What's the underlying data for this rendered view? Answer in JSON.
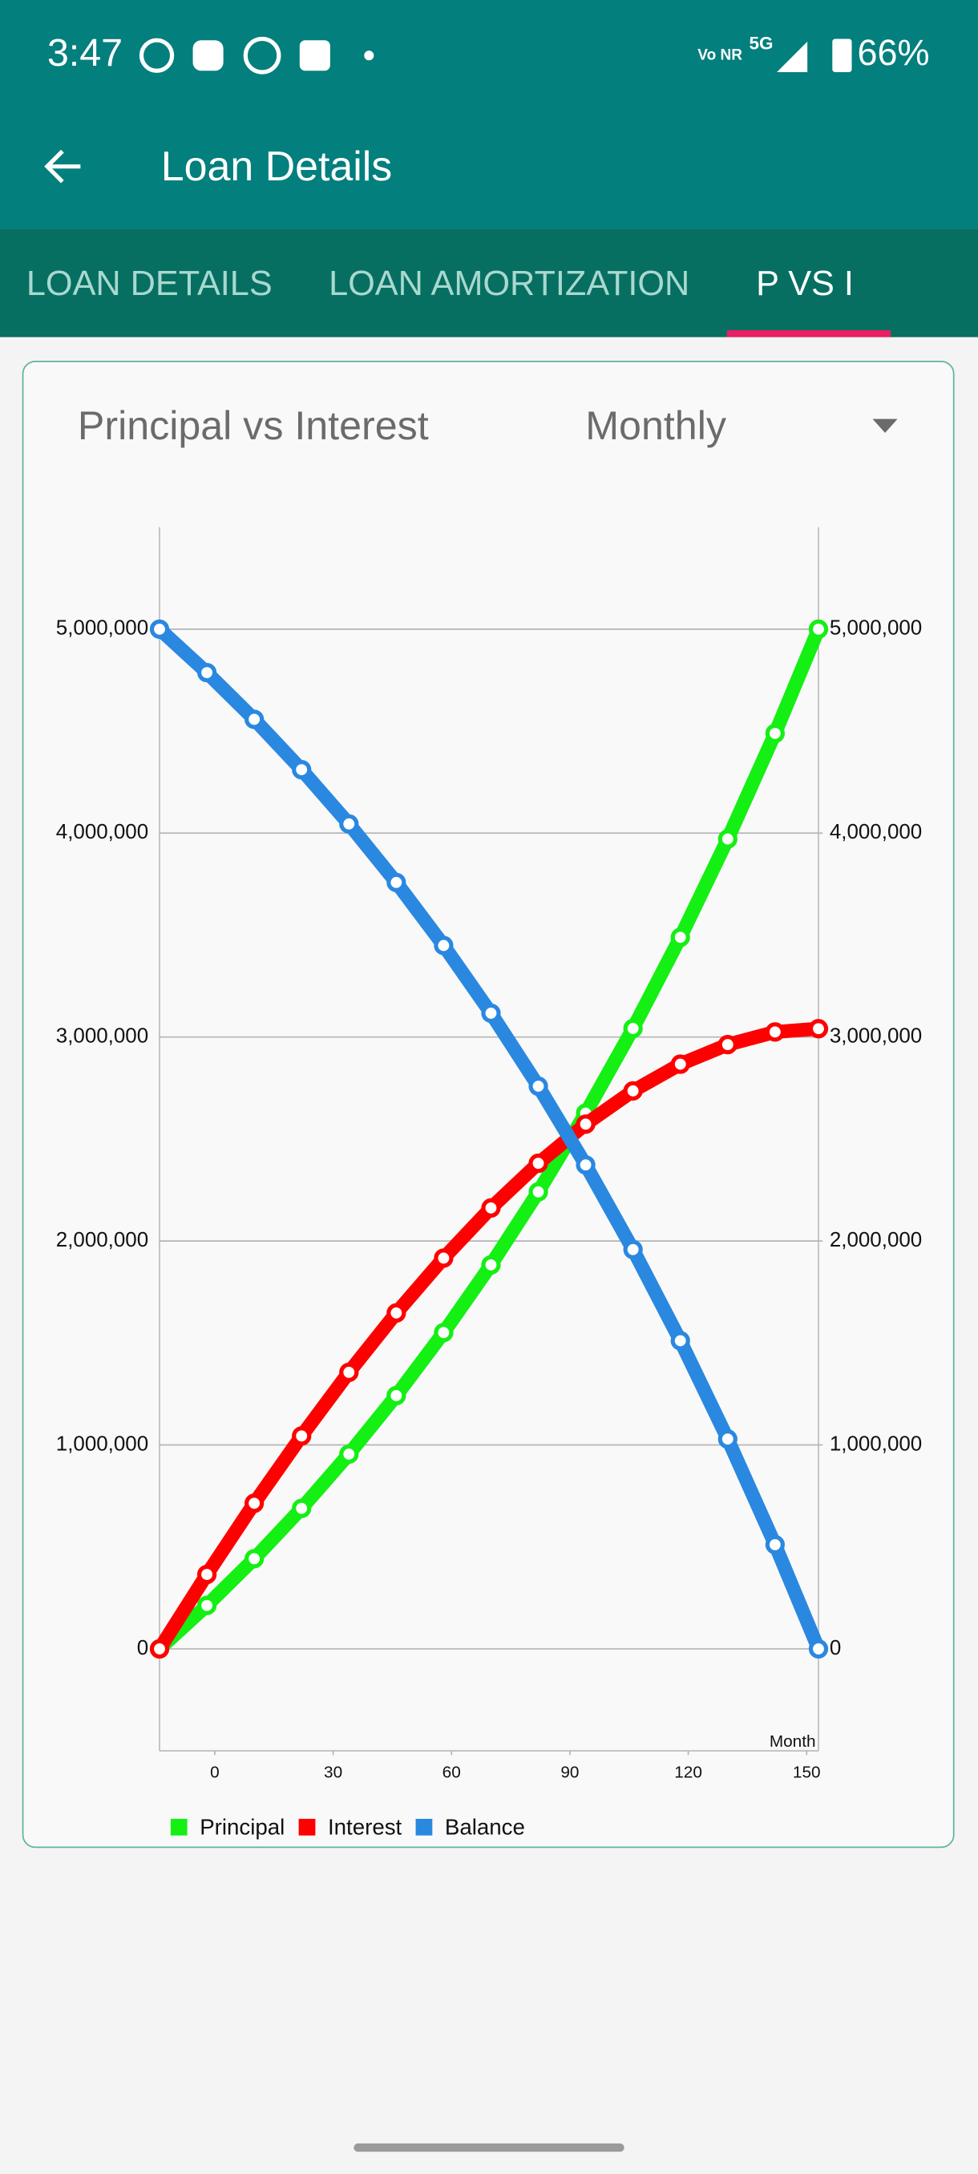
{
  "status_bar": {
    "time": "3:47",
    "network": "5G",
    "volte": "Vo NR",
    "battery": "66%"
  },
  "app_bar": {
    "title": "Loan Details"
  },
  "tabs": [
    "LOAN DETAILS",
    "LOAN AMORTIZATION",
    "P VS I"
  ],
  "card": {
    "title": "Principal vs Interest",
    "dropdown": "Monthly"
  },
  "chart_data": {
    "type": "line",
    "x_label": "Month",
    "x": [
      -14,
      -2,
      10,
      22,
      34,
      46,
      58,
      70,
      82,
      94,
      106,
      118,
      130,
      142,
      153
    ],
    "xlim": [
      -14,
      153
    ],
    "xticks": [
      0,
      30,
      60,
      90,
      120,
      150
    ],
    "ylim": [
      -500000,
      5500000
    ],
    "yticks": [
      {
        "value": 0,
        "label": "0"
      },
      {
        "value": 1000000,
        "label": "1,000,000"
      },
      {
        "value": 2000000,
        "label": "2,000,000"
      },
      {
        "value": 3000000,
        "label": "3,000,000"
      },
      {
        "value": 4000000,
        "label": "4,000,000"
      },
      {
        "value": 5000000,
        "label": "5,000,000"
      }
    ],
    "y2lim": [
      -500000,
      5500000
    ],
    "y2ticks": [
      {
        "value": 0,
        "label": "0"
      },
      {
        "value": 1000000,
        "label": "1,000,000"
      },
      {
        "value": 2000000,
        "label": "2,000,000"
      },
      {
        "value": 3000000,
        "label": "3,000,000"
      },
      {
        "value": 4000000,
        "label": "4,000,000"
      },
      {
        "value": 5000000,
        "label": "5,000,000"
      }
    ],
    "grid": true,
    "series": [
      {
        "name": "Principal",
        "color": "#14ef14",
        "values": [
          0,
          213000,
          442000,
          689000,
          955000,
          1242000,
          1551000,
          1883000,
          2241000,
          2627000,
          3042000,
          3489000,
          3971000,
          4489000,
          5000000
        ]
      },
      {
        "name": "Interest",
        "color": "#ff0000",
        "values": [
          0,
          365000,
          714000,
          1044000,
          1356000,
          1647000,
          1916000,
          2162000,
          2381000,
          2573000,
          2736000,
          2867000,
          2963000,
          3025000,
          3041000
        ]
      },
      {
        "name": "Balance",
        "color": "#2a88e0",
        "values": [
          5000000,
          4787000,
          4558000,
          4311000,
          4045000,
          3758000,
          3449000,
          3117000,
          2759000,
          2373000,
          1958000,
          1511000,
          1029000,
          511000,
          0
        ]
      }
    ]
  }
}
